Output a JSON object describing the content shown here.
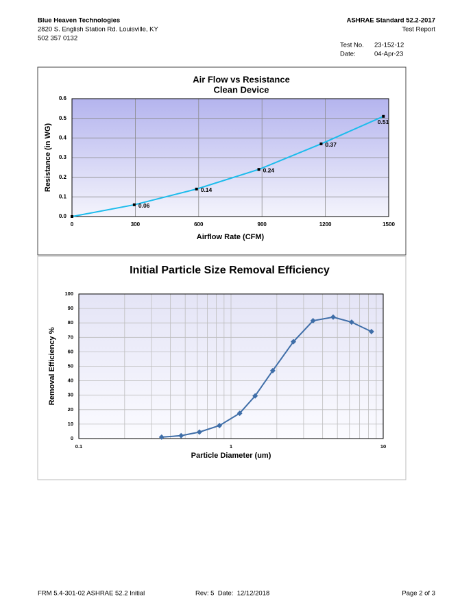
{
  "header": {
    "company": "Blue Heaven Technologies",
    "address": "2820 S. English Station Rd. Louisville, KY",
    "phone": "502 357 0132",
    "standard": "ASHRAE Standard 52.2-2017",
    "report": "Test Report",
    "test_no_label": "Test No.",
    "test_no": "23-152-12",
    "date_label": "Date:",
    "date": "04-Apr-23"
  },
  "chart_data": [
    {
      "type": "line",
      "title": "Air Flow vs Resistance",
      "subtitle": "Clean Device",
      "x_label": "Airflow Rate (CFM)",
      "y_label": "Resistance (in WG)",
      "x": [
        0,
        295,
        590,
        885,
        1180,
        1475
      ],
      "values": [
        0,
        0.06,
        0.14,
        0.24,
        0.37,
        0.51
      ],
      "value_labels": [
        null,
        "0.06",
        "0.14",
        "0.24",
        "0.37",
        "0.51"
      ],
      "color": "#1cbcec",
      "marker": "square",
      "marker_color": "#000000",
      "xlim": [
        0,
        1500
      ],
      "xticks": [
        0,
        300,
        600,
        900,
        1200,
        1500
      ],
      "ylim": [
        0,
        0.6
      ],
      "yticks": [
        {
          "value": 0,
          "label": "0.0"
        },
        0.1,
        0.2,
        0.3,
        0.4,
        0.5,
        0.6
      ],
      "grid": true
    },
    {
      "type": "line",
      "title": "Initial Particle Size Removal Efficiency",
      "x_label": "Particle Diameter (um)",
      "y_label": "Removal Efficiency %",
      "x": [
        0.35,
        0.47,
        0.62,
        0.84,
        1.14,
        1.44,
        1.88,
        2.57,
        3.46,
        4.69,
        6.2,
        8.37
      ],
      "values": [
        1,
        2,
        4.5,
        9,
        17.5,
        29.5,
        47,
        67,
        81.5,
        84,
        80.5,
        74
      ],
      "color": "#3f6ea8",
      "marker": "diamond",
      "marker_color": "#3f6ea8",
      "xlog": true,
      "xlim": [
        0.1,
        10
      ],
      "xticks": [
        0.1,
        1,
        10
      ],
      "xminorticks": [
        0.2,
        0.3,
        0.4,
        0.5,
        0.6,
        0.7,
        0.8,
        0.9,
        2,
        3,
        4,
        5,
        6,
        7,
        8,
        9
      ],
      "ylim": [
        0,
        100
      ],
      "yticks": [
        0,
        10,
        20,
        30,
        40,
        50,
        60,
        70,
        80,
        90,
        100
      ],
      "grid": true
    }
  ],
  "footer": {
    "form": "FRM 5.4-301-02 ASHRAE 52.2 Initial",
    "rev": "Rev: 5  Date:  12/12/2018",
    "page": "Page 2 of 3"
  }
}
